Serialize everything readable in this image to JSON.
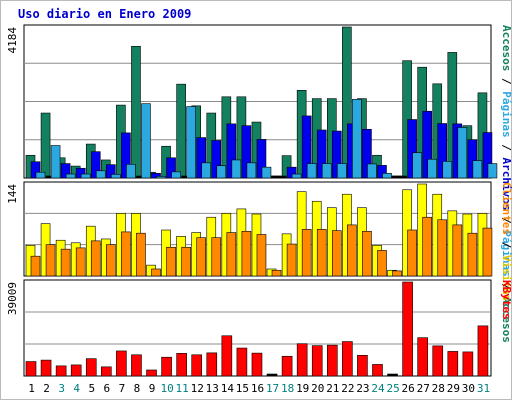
{
  "chart_data": [
    {
      "panel": "hits",
      "type": "bar",
      "title": "Uso diario en Enero 2009",
      "ymax_label": "4184",
      "right_legend": [
        "Accesos",
        "Páginas",
        "Archivos",
        "Páginas",
        "Accesos"
      ],
      "categories": [
        "1",
        "2",
        "3",
        "4",
        "5",
        "6",
        "7",
        "8",
        "9",
        "10",
        "11",
        "12",
        "13",
        "14",
        "15",
        "16",
        "17",
        "18",
        "19",
        "20",
        "21",
        "22",
        "23",
        "24",
        "25",
        "26",
        "27",
        "28",
        "29",
        "30",
        "31"
      ],
      "ylim": [
        0,
        4184
      ],
      "series": [
        {
          "name": "Accesos",
          "color": "#138060",
          "values": [
            630,
            1800,
            560,
            330,
            940,
            500,
            2020,
            3650,
            160,
            880,
            2600,
            2000,
            1800,
            2250,
            2250,
            1550,
            0,
            620,
            2430,
            2200,
            2200,
            4184,
            2200,
            630,
            0,
            3250,
            3070,
            2610,
            3480,
            1450,
            2360
          ]
        },
        {
          "name": "Archivos",
          "color": "#0000ee",
          "values": [
            450,
            0,
            400,
            270,
            730,
            370,
            1250,
            0,
            130,
            560,
            0,
            1120,
            1040,
            1500,
            1450,
            1070,
            0,
            300,
            1720,
            1330,
            1300,
            1500,
            1350,
            350,
            0,
            1620,
            1850,
            1510,
            1500,
            1060,
            1260
          ]
        },
        {
          "name": "Páginas",
          "color": "#2ca8e0",
          "values": [
            160,
            900,
            110,
            110,
            200,
            100,
            380,
            2060,
            45,
            170,
            1980,
            420,
            340,
            500,
            420,
            300,
            0,
            110,
            400,
            400,
            400,
            2180,
            390,
            130,
            0,
            700,
            520,
            460,
            1400,
            480,
            400
          ]
        }
      ]
    },
    {
      "panel": "visits",
      "type": "bar",
      "ymax_label": "144",
      "right_legend": [
        "Clientes",
        "Visitas"
      ],
      "ylim": [
        0,
        144
      ],
      "series": [
        {
          "name": "Visitas",
          "color": "#ffff00",
          "values": [
            48,
            82,
            56,
            52,
            78,
            58,
            98,
            98,
            17,
            72,
            62,
            68,
            92,
            98,
            105,
            97,
            11,
            66,
            132,
            117,
            107,
            128,
            107,
            48,
            9,
            135,
            144,
            128,
            102,
            97,
            98
          ]
        },
        {
          "name": "Clientes",
          "color": "#ff8800",
          "values": [
            31,
            49,
            42,
            44,
            55,
            49,
            69,
            67,
            11,
            45,
            45,
            60,
            60,
            68,
            70,
            65,
            9,
            50,
            73,
            73,
            71,
            80,
            70,
            40,
            8,
            72,
            92,
            88,
            80,
            67,
            75
          ]
        }
      ]
    },
    {
      "panel": "kbytes",
      "type": "bar",
      "ymax_label": "39009",
      "right_legend": [
        "KBytes"
      ],
      "ylim": [
        0,
        39009
      ],
      "series": [
        {
          "name": "KBytes",
          "color": "#ff0000",
          "values": [
            6000,
            6600,
            4200,
            4600,
            7200,
            3800,
            10400,
            8800,
            2500,
            7800,
            9400,
            8800,
            9600,
            16700,
            11600,
            9500,
            0,
            8200,
            13400,
            12600,
            12800,
            14300,
            8600,
            4800,
            0,
            39009,
            15900,
            12500,
            10200,
            10000,
            20800
          ]
        }
      ]
    }
  ],
  "x_labels": [
    "1",
    "2",
    "3",
    "4",
    "5",
    "6",
    "7",
    "8",
    "9",
    "10",
    "11",
    "12",
    "13",
    "14",
    "15",
    "16",
    "17",
    "18",
    "19",
    "20",
    "21",
    "22",
    "23",
    "24",
    "25",
    "26",
    "27",
    "28",
    "29",
    "30",
    "31"
  ],
  "weekend_days": [
    "3",
    "4",
    "10",
    "11",
    "17",
    "18",
    "24",
    "25",
    "31"
  ],
  "colors": {
    "title": "#0000cc",
    "weekday_label": "#000000",
    "weekend_label": "#008080",
    "panel_bg": "#ffffff",
    "grid": "#8c8c8c",
    "frame": "#000000",
    "legend_separator": "#000000"
  }
}
